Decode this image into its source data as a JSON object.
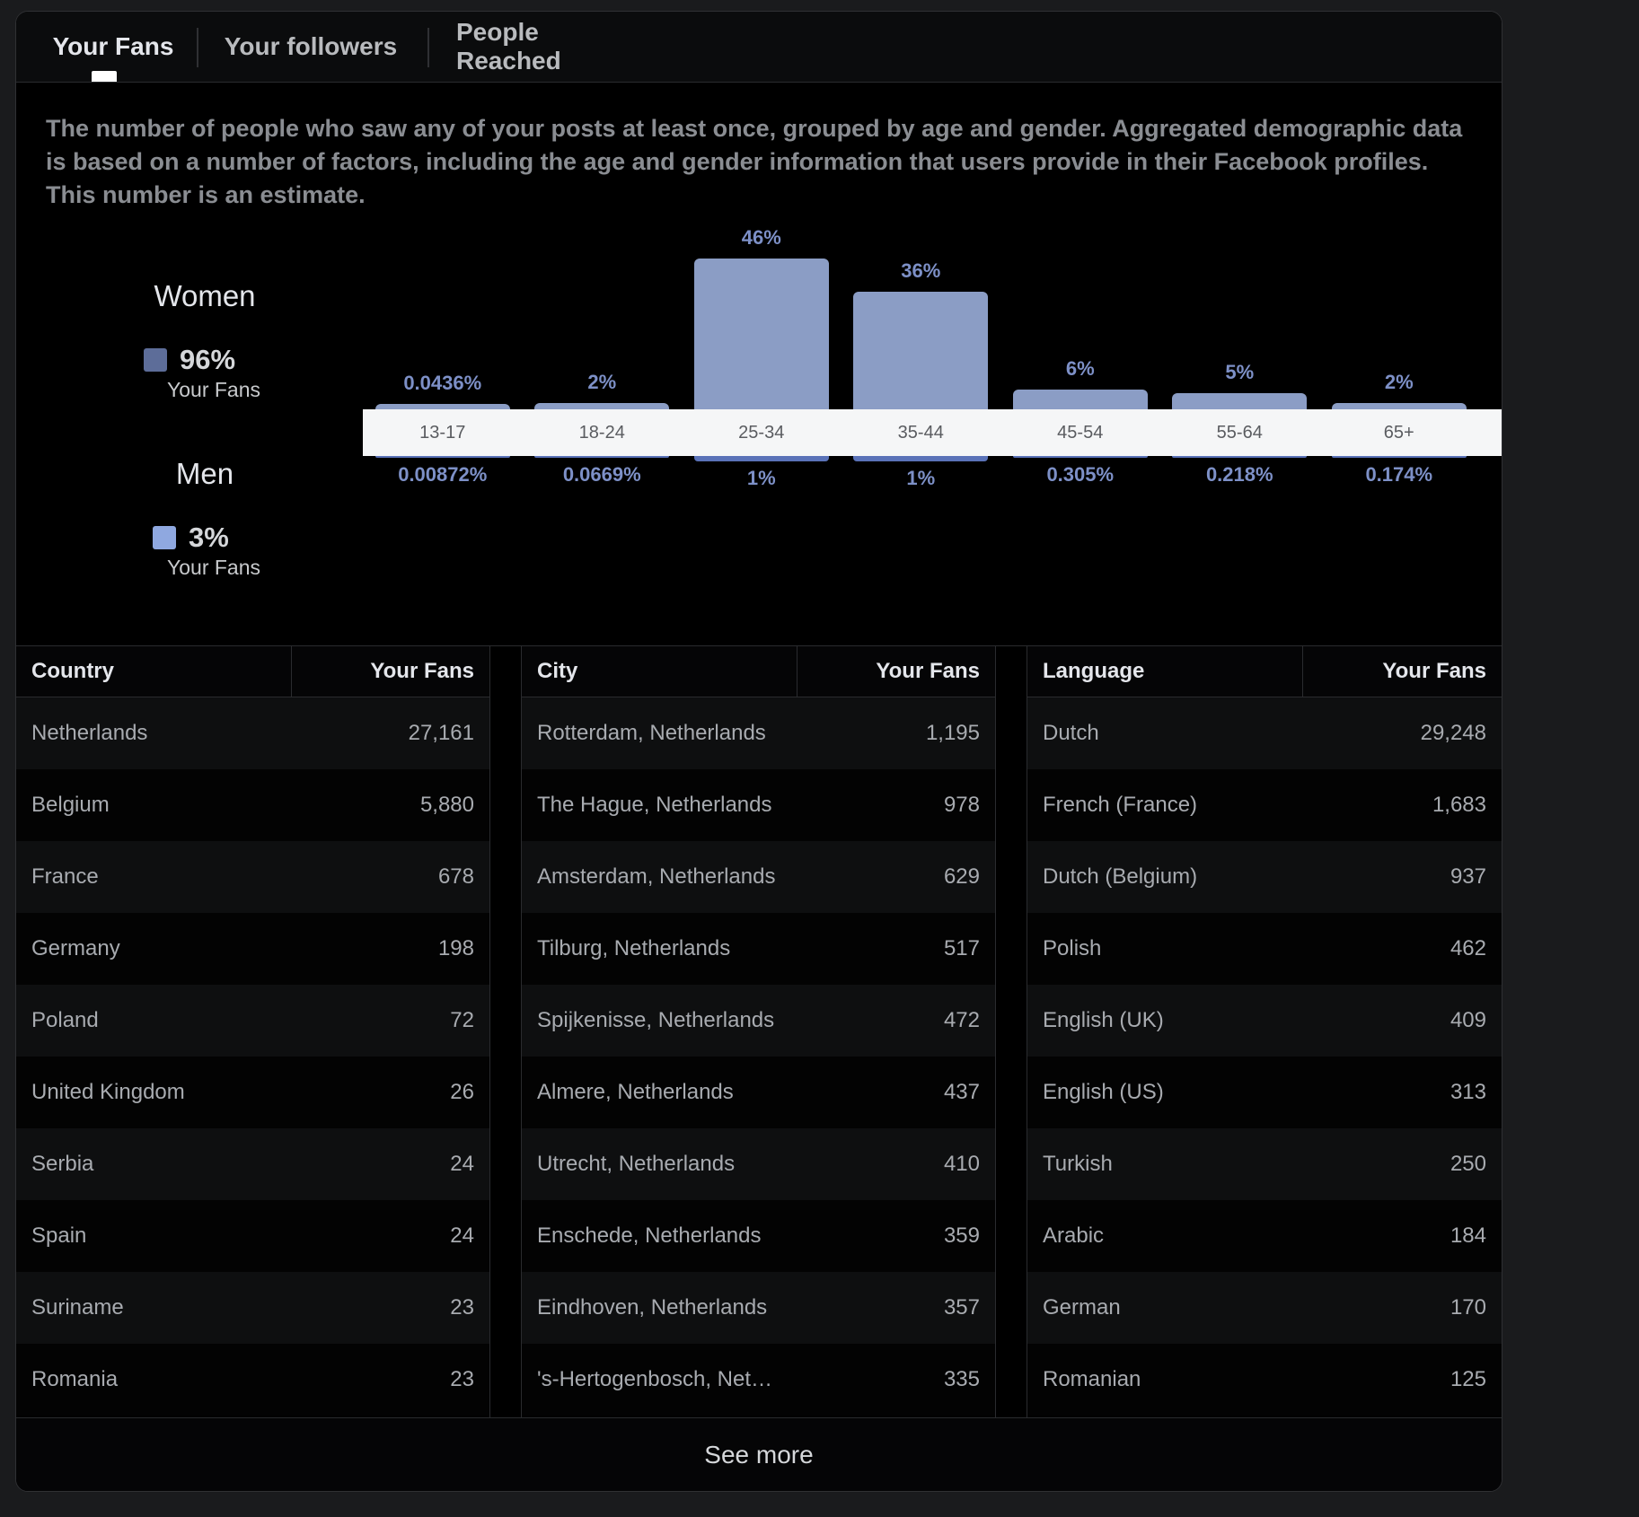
{
  "tabs": [
    {
      "label": "Your Fans",
      "active": true
    },
    {
      "label": "Your followers",
      "active": false
    },
    {
      "label": "People Reached",
      "active": false
    }
  ],
  "description": "The number of people who saw any of your posts at least once, grouped by age and gender. Aggregated demographic data is based on a number of factors, including the age and gender information that users provide in their Facebook profiles. This number is an estimate.",
  "legend": {
    "women": {
      "title": "Women",
      "pct": "96%",
      "sub": "Your Fans",
      "color": "#5d6d99"
    },
    "men": {
      "title": "Men",
      "pct": "3%",
      "sub": "Your Fans",
      "color": "#8fa8e0"
    }
  },
  "chart_data": {
    "type": "bar",
    "categories": [
      "13-17",
      "18-24",
      "25-34",
      "35-44",
      "45-54",
      "55-64",
      "65+"
    ],
    "series": [
      {
        "name": "Women",
        "values": [
          0.0436,
          2,
          46,
          36,
          6,
          5,
          2
        ],
        "labels": [
          "0.0436%",
          "2%",
          "46%",
          "36%",
          "6%",
          "5%",
          "2%"
        ],
        "color": "#8b9dc5"
      },
      {
        "name": "Men",
        "values": [
          0.00872,
          0.0669,
          1,
          1,
          0.305,
          0.218,
          0.174
        ],
        "labels": [
          "0.00872%",
          "0.0669%",
          "1%",
          "1%",
          "0.305%",
          "0.218%",
          "0.174%"
        ],
        "color": "#5a72b8"
      }
    ],
    "ylim": [
      0,
      46
    ]
  },
  "tables": [
    {
      "col1": "Country",
      "col2": "Your Fans",
      "rows": [
        [
          "Netherlands",
          "27,161"
        ],
        [
          "Belgium",
          "5,880"
        ],
        [
          "France",
          "678"
        ],
        [
          "Germany",
          "198"
        ],
        [
          "Poland",
          "72"
        ],
        [
          "United Kingdom",
          "26"
        ],
        [
          "Serbia",
          "24"
        ],
        [
          "Spain",
          "24"
        ],
        [
          "Suriname",
          "23"
        ],
        [
          "Romania",
          "23"
        ]
      ]
    },
    {
      "col1": "City",
      "col2": "Your Fans",
      "rows": [
        [
          "Rotterdam, Netherlands",
          "1,195"
        ],
        [
          "The Hague, Netherlands",
          "978"
        ],
        [
          "Amsterdam, Netherlands",
          "629"
        ],
        [
          "Tilburg, Netherlands",
          "517"
        ],
        [
          "Spijkenisse, Netherlands",
          "472"
        ],
        [
          "Almere, Netherlands",
          "437"
        ],
        [
          "Utrecht, Netherlands",
          "410"
        ],
        [
          "Enschede, Netherlands",
          "359"
        ],
        [
          "Eindhoven, Netherlands",
          "357"
        ],
        [
          "'s-Hertogenbosch, Net…",
          "335"
        ]
      ]
    },
    {
      "col1": "Language",
      "col2": "Your Fans",
      "rows": [
        [
          "Dutch",
          "29,248"
        ],
        [
          "French (France)",
          "1,683"
        ],
        [
          "Dutch (Belgium)",
          "937"
        ],
        [
          "Polish",
          "462"
        ],
        [
          "English (UK)",
          "409"
        ],
        [
          "English (US)",
          "313"
        ],
        [
          "Turkish",
          "250"
        ],
        [
          "Arabic",
          "184"
        ],
        [
          "German",
          "170"
        ],
        [
          "Romanian",
          "125"
        ]
      ]
    }
  ],
  "see_more": "See more"
}
